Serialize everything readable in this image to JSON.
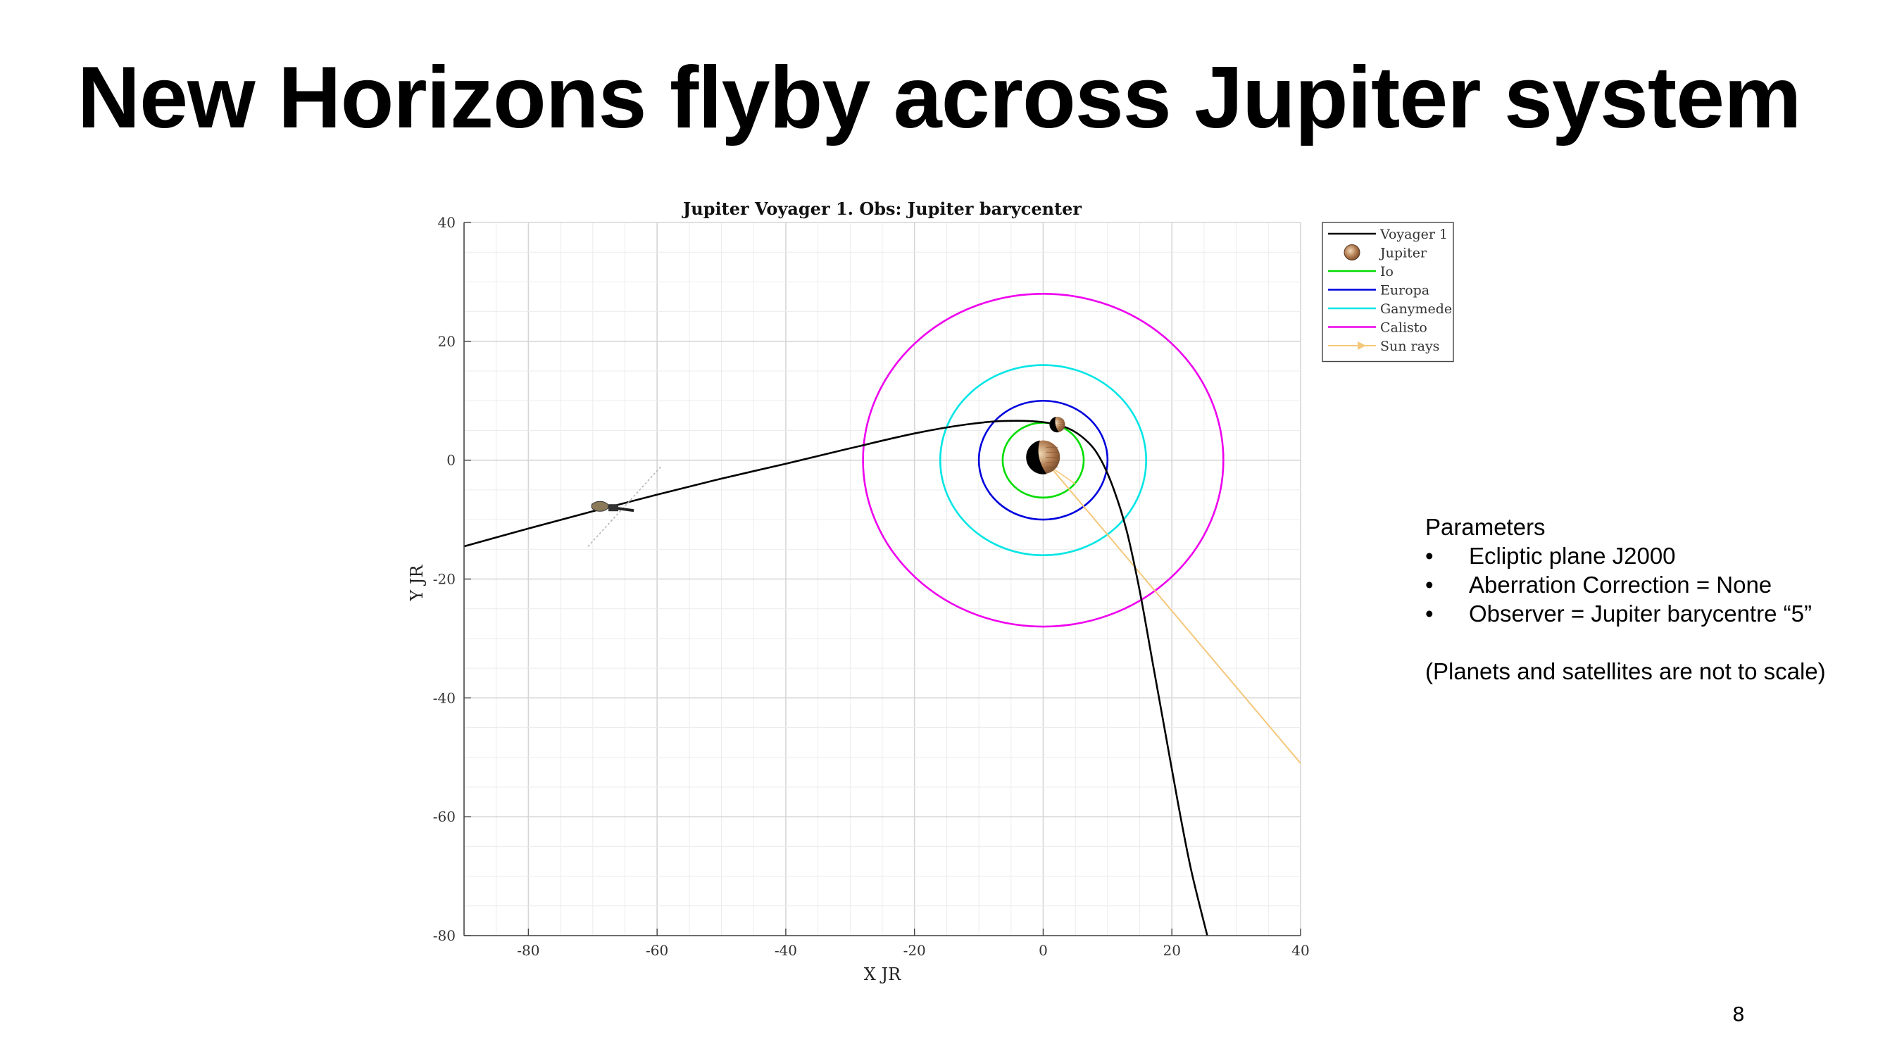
{
  "slide": {
    "title": "New Horizons flyby across Jupiter system",
    "page_number": "8"
  },
  "parameters": {
    "heading": "Parameters",
    "bullet_glyph": "•",
    "items": [
      "Ecliptic plane J2000",
      "Aberration Correction = None",
      "Observer = Jupiter barycentre “5”"
    ],
    "note": "(Planets and satellites are not to scale)"
  },
  "chart_data": {
    "type": "line",
    "title": "Jupiter Voyager 1. Obs: Jupiter barycenter",
    "xlabel": "X JR",
    "ylabel": "Y JR",
    "xlim": [
      -90,
      40
    ],
    "ylim": [
      -80,
      40
    ],
    "xticks": [
      -80,
      -60,
      -40,
      -20,
      0,
      20,
      40
    ],
    "yticks": [
      -80,
      -60,
      -40,
      -20,
      0,
      20,
      40
    ],
    "grid": true,
    "legend_position": "outside-top-right",
    "legend": [
      {
        "label": "Voyager 1",
        "color": "#000000",
        "kind": "line"
      },
      {
        "label": "Jupiter",
        "color": "#9c6b45",
        "kind": "planet"
      },
      {
        "label": "Io",
        "color": "#00dd00",
        "kind": "line"
      },
      {
        "label": "Europa",
        "color": "#0000dd",
        "kind": "line"
      },
      {
        "label": "Ganymede",
        "color": "#00e5e5",
        "kind": "line"
      },
      {
        "label": "Calisto",
        "color": "#ee00ee",
        "kind": "line"
      },
      {
        "label": "Sun rays",
        "color": "#f5c77a",
        "kind": "arrow"
      }
    ],
    "series": [
      {
        "name": "Voyager 1",
        "color": "#000000",
        "x": [
          -90,
          -80,
          -70,
          -60,
          -50,
          -40,
          -30,
          -20,
          -12,
          -6,
          0,
          4,
          7,
          9,
          11,
          13,
          15,
          17,
          19,
          21,
          23,
          25.5
        ],
        "y": [
          -14.5,
          -11.5,
          -8.6,
          -5.8,
          -3.1,
          -0.6,
          2,
          4.5,
          6,
          6.6,
          6.4,
          5.3,
          3,
          0,
          -5,
          -12,
          -22,
          -34,
          -46,
          -58,
          -69,
          -80
        ]
      },
      {
        "name": "Io",
        "color": "#00dd00",
        "orbit_radius": 6.3
      },
      {
        "name": "Europa",
        "color": "#0000dd",
        "orbit_radius": 10
      },
      {
        "name": "Ganymede",
        "color": "#00e5e5",
        "orbit_radius": 16
      },
      {
        "name": "Calisto",
        "color": "#ee00ee",
        "orbit_radius": 28
      }
    ],
    "bodies": [
      {
        "name": "Jupiter",
        "x": 0,
        "y": 0.5,
        "radius": 2.6
      },
      {
        "name": "Io",
        "x": 2.2,
        "y": 6,
        "radius": 1.2
      }
    ],
    "sun_rays": {
      "from": [
        1,
        -1
      ],
      "to": [
        40,
        -51
      ],
      "color": "#f5c77a"
    },
    "spacecraft": {
      "name": "Voyager 1",
      "x": -68,
      "y": -8
    }
  }
}
